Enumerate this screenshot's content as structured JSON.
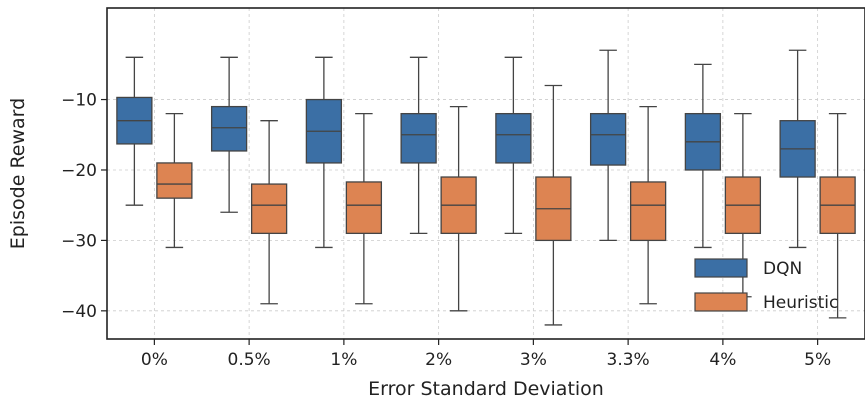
{
  "chart_data": {
    "type": "box",
    "title": "",
    "xlabel": "Error Standard Deviation",
    "ylabel": "Episode Reward",
    "categories": [
      "0%",
      "0.5%",
      "1%",
      "2%",
      "3%",
      "3.3%",
      "4%",
      "5%"
    ],
    "ylim": [
      -44,
      3
    ],
    "yticks": [
      -10,
      -20,
      -30,
      -40
    ],
    "ytick_labels": [
      "−10",
      "−20",
      "−30",
      "−40"
    ],
    "grid": true,
    "legend_position": "lower-right",
    "series": [
      {
        "name": "DQN",
        "color": "#3b6fa5",
        "boxes": [
          {
            "whisker_low": -25,
            "q1": -16.3,
            "median": -13,
            "q3": -9.7,
            "whisker_high": -4
          },
          {
            "whisker_low": -26,
            "q1": -17.3,
            "median": -14,
            "q3": -11,
            "whisker_high": -4
          },
          {
            "whisker_low": -31,
            "q1": -19,
            "median": -14.5,
            "q3": -10,
            "whisker_high": -4
          },
          {
            "whisker_low": -29,
            "q1": -19,
            "median": -15,
            "q3": -12,
            "whisker_high": -4
          },
          {
            "whisker_low": -29,
            "q1": -19,
            "median": -15,
            "q3": -12,
            "whisker_high": -4
          },
          {
            "whisker_low": -30,
            "q1": -19.3,
            "median": -15,
            "q3": -12,
            "whisker_high": -3
          },
          {
            "whisker_low": -31,
            "q1": -20,
            "median": -16,
            "q3": -12,
            "whisker_high": -5
          },
          {
            "whisker_low": -31,
            "q1": -21,
            "median": -17,
            "q3": -13,
            "whisker_high": -3
          }
        ]
      },
      {
        "name": "Heuristic",
        "color": "#dd8452",
        "boxes": [
          {
            "whisker_low": -31,
            "q1": -24,
            "median": -22,
            "q3": -19,
            "whisker_high": -12
          },
          {
            "whisker_low": -39,
            "q1": -29,
            "median": -25,
            "q3": -22,
            "whisker_high": -13
          },
          {
            "whisker_low": -39,
            "q1": -29,
            "median": -25,
            "q3": -21.7,
            "whisker_high": -12
          },
          {
            "whisker_low": -40,
            "q1": -29,
            "median": -25,
            "q3": -21,
            "whisker_high": -11
          },
          {
            "whisker_low": -42,
            "q1": -30,
            "median": -25.5,
            "q3": -21,
            "whisker_high": -8
          },
          {
            "whisker_low": -39,
            "q1": -30,
            "median": -25,
            "q3": -21.7,
            "whisker_high": -11
          },
          {
            "whisker_low": -38,
            "q1": -29,
            "median": -25,
            "q3": -21,
            "whisker_high": -12
          },
          {
            "whisker_low": -41,
            "q1": -29,
            "median": -25,
            "q3": -21,
            "whisker_high": -12
          }
        ]
      }
    ]
  }
}
